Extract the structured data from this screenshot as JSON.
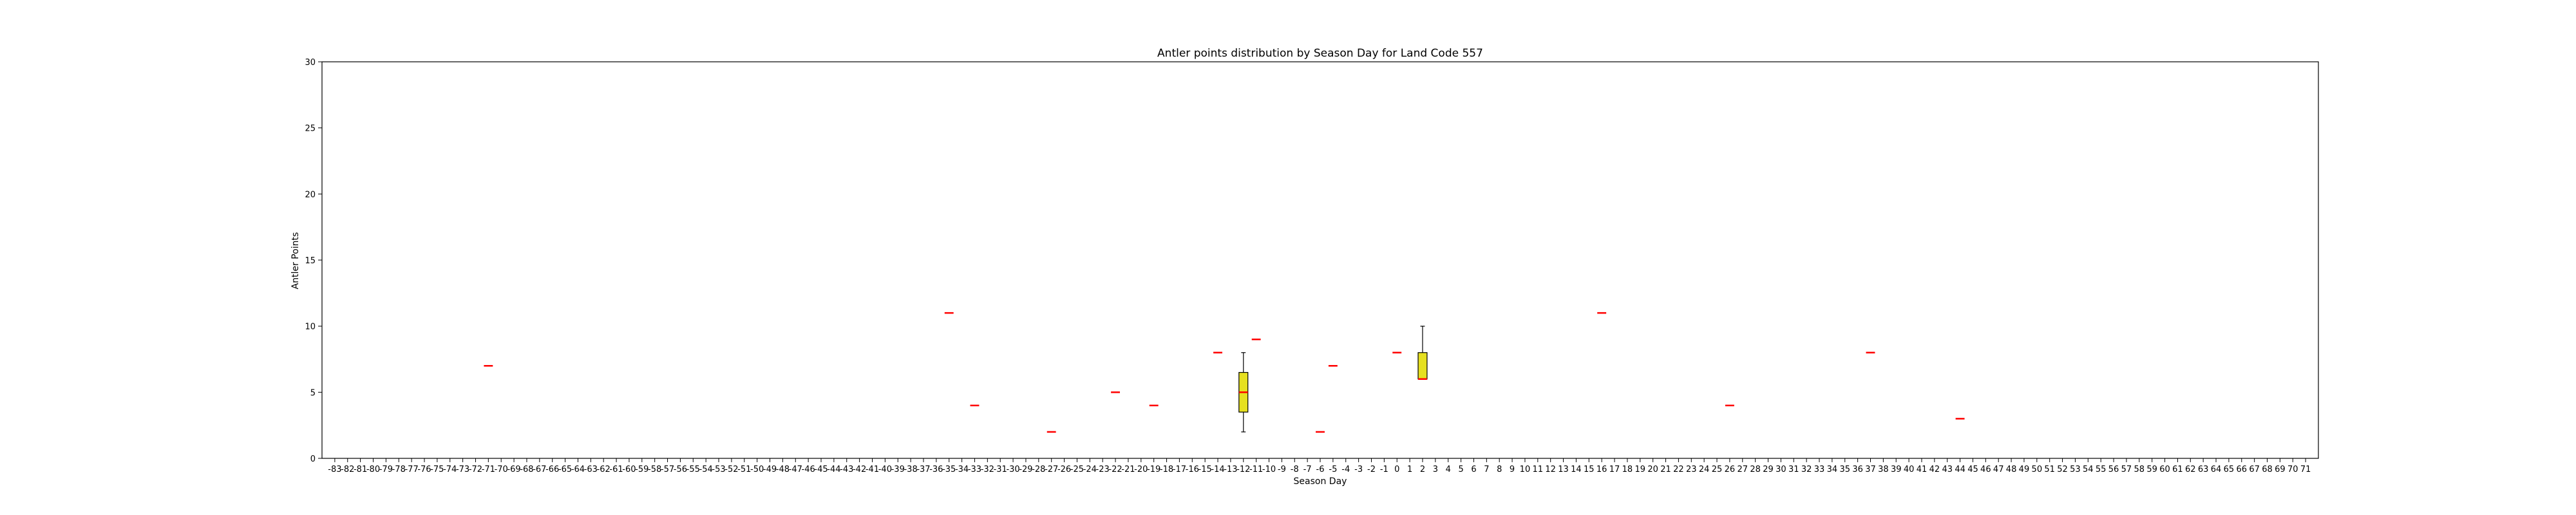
{
  "chart_data": {
    "type": "box",
    "title": "Antler points distribution by Season Day for Land Code 557",
    "xlabel": "Season Day",
    "ylabel": "Antler Points",
    "ylim": [
      0,
      30
    ],
    "yticks": [
      0,
      5,
      10,
      15,
      20,
      25,
      30
    ],
    "categories": [
      -83,
      -82,
      -81,
      -80,
      -79,
      -78,
      -77,
      -76,
      -75,
      -74,
      -73,
      -72,
      -71,
      -70,
      -69,
      -68,
      -67,
      -66,
      -65,
      -64,
      -63,
      -62,
      -61,
      -60,
      -59,
      -58,
      -57,
      -56,
      -55,
      -54,
      -53,
      -52,
      -51,
      -50,
      -49,
      -48,
      -47,
      -46,
      -45,
      -44,
      -43,
      -42,
      -41,
      -40,
      -39,
      -38,
      -37,
      -36,
      -35,
      -34,
      -33,
      -32,
      -31,
      -30,
      -29,
      -28,
      -27,
      -26,
      -25,
      -24,
      -23,
      -22,
      -21,
      -20,
      -19,
      -18,
      -17,
      -16,
      -15,
      -14,
      -13,
      -12,
      -11,
      -10,
      -9,
      -8,
      -7,
      -6,
      -5,
      -4,
      -3,
      -2,
      -1,
      0,
      1,
      2,
      3,
      4,
      5,
      6,
      7,
      8,
      9,
      10,
      11,
      12,
      13,
      14,
      15,
      16,
      17,
      18,
      19,
      20,
      21,
      22,
      23,
      24,
      25,
      26,
      27,
      28,
      29,
      30,
      31,
      32,
      33,
      34,
      35,
      36,
      37,
      38,
      39,
      40,
      41,
      42,
      43,
      44,
      45,
      46,
      47,
      48,
      49,
      50,
      51,
      52,
      53,
      54,
      55,
      56,
      57,
      58,
      59,
      60,
      61,
      62,
      63,
      64,
      65,
      66,
      67,
      68,
      69,
      70,
      71
    ],
    "grid": false,
    "box_color": "#e6e020",
    "median_color": "#ff0000",
    "boxes": [
      {
        "x": -71,
        "min": 7,
        "q1": 7,
        "median": 7,
        "q3": 7,
        "max": 7
      },
      {
        "x": -35,
        "min": 11,
        "q1": 11,
        "median": 11,
        "q3": 11,
        "max": 11
      },
      {
        "x": -33,
        "min": 4,
        "q1": 4,
        "median": 4,
        "q3": 4,
        "max": 4
      },
      {
        "x": -27,
        "min": 2,
        "q1": 2,
        "median": 2,
        "q3": 2,
        "max": 2
      },
      {
        "x": -22,
        "min": 5,
        "q1": 5,
        "median": 5,
        "q3": 5,
        "max": 5
      },
      {
        "x": -19,
        "min": 4,
        "q1": 4,
        "median": 4,
        "q3": 4,
        "max": 4
      },
      {
        "x": -14,
        "min": 8,
        "q1": 8,
        "median": 8,
        "q3": 8,
        "max": 8
      },
      {
        "x": -12,
        "min": 2,
        "q1": 3.5,
        "median": 5,
        "q3": 6.5,
        "max": 8
      },
      {
        "x": -11,
        "min": 9,
        "q1": 9,
        "median": 9,
        "q3": 9,
        "max": 9
      },
      {
        "x": -6,
        "min": 2,
        "q1": 2,
        "median": 2,
        "q3": 2,
        "max": 2
      },
      {
        "x": -5,
        "min": 7,
        "q1": 7,
        "median": 7,
        "q3": 7,
        "max": 7
      },
      {
        "x": 0,
        "min": 8,
        "q1": 8,
        "median": 8,
        "q3": 8,
        "max": 8
      },
      {
        "x": 2,
        "min": 6,
        "q1": 6,
        "median": 6,
        "q3": 8,
        "max": 10
      },
      {
        "x": 16,
        "min": 11,
        "q1": 11,
        "median": 11,
        "q3": 11,
        "max": 11
      },
      {
        "x": 26,
        "min": 4,
        "q1": 4,
        "median": 4,
        "q3": 4,
        "max": 4
      },
      {
        "x": 37,
        "min": 8,
        "q1": 8,
        "median": 8,
        "q3": 8,
        "max": 8
      },
      {
        "x": 44,
        "min": 3,
        "q1": 3,
        "median": 3,
        "q3": 3,
        "max": 3
      }
    ]
  }
}
